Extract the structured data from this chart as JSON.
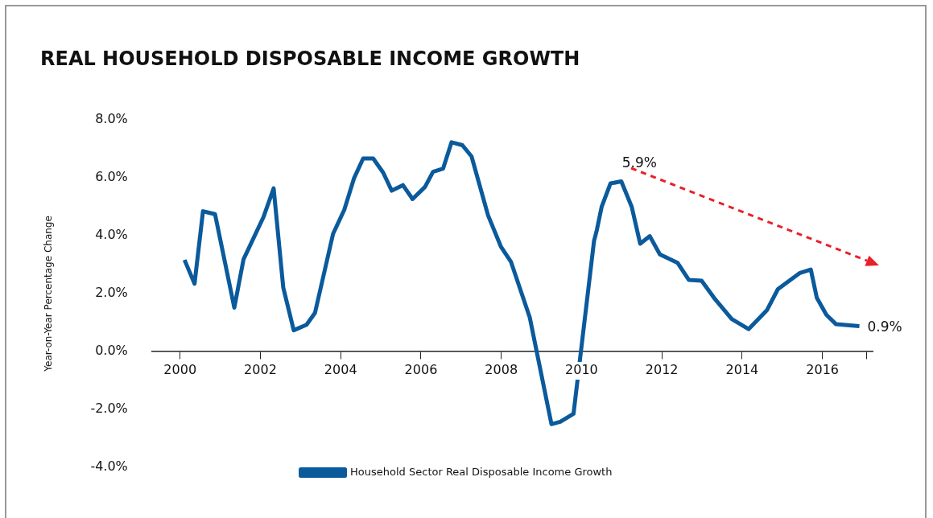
{
  "chart_data": {
    "type": "line",
    "title": "REAL HOUSEHOLD DISPOSABLE INCOME GROWTH",
    "ylabel": "Year-on-Year Percentage Change",
    "x": [
      2000.11,
      2000.36,
      2000.57,
      2000.87,
      2001.35,
      2001.58,
      2002.08,
      2002.33,
      2002.57,
      2002.83,
      2003.15,
      2003.36,
      2003.81,
      2004.09,
      2004.33,
      2004.56,
      2004.81,
      2005.06,
      2005.27,
      2005.55,
      2005.79,
      2006.1,
      2006.3,
      2006.55,
      2006.76,
      2007.03,
      2007.26,
      2007.67,
      2007.99,
      2008.24,
      2008.71,
      2009.25,
      2009.47,
      2009.8,
      2010.31,
      2010.38,
      2010.5,
      2010.72,
      2010.99,
      2011.25,
      2011.46,
      2011.7,
      2011.95,
      2012.39,
      2012.67,
      2012.99,
      2013.3,
      2013.74,
      2014.16,
      2014.62,
      2014.89,
      2015.44,
      2015.71,
      2015.86,
      2016.1,
      2016.34,
      2016.92
    ],
    "series": [
      {
        "name": "Household Sector Real Disposable Income Growth",
        "color": "#0a5a9c",
        "values": [
          3.16,
          2.34,
          4.84,
          4.74,
          1.51,
          3.18,
          4.65,
          5.63,
          2.2,
          0.73,
          0.92,
          1.33,
          4.06,
          4.89,
          5.97,
          6.66,
          6.66,
          6.17,
          5.55,
          5.74,
          5.26,
          5.68,
          6.2,
          6.31,
          7.22,
          7.12,
          6.73,
          4.7,
          3.62,
          3.1,
          1.17,
          -2.51,
          -2.43,
          -2.15,
          3.81,
          4.19,
          4.99,
          5.8,
          5.87,
          4.99,
          3.72,
          3.98,
          3.35,
          3.06,
          2.47,
          2.44,
          1.85,
          1.12,
          0.77,
          1.43,
          2.15,
          2.71,
          2.83,
          1.85,
          1.26,
          0.94,
          0.87
        ]
      }
    ],
    "xlim": [
      1999.3,
      2017.25
    ],
    "xticks": [
      2000,
      2002,
      2004,
      2006,
      2008,
      2010,
      2012,
      2014,
      2016,
      {
        "value": 2017.1,
        "label": null
      }
    ],
    "ylim": [
      -4,
      8
    ],
    "yticks": [
      {
        "value": -4,
        "label": "-4.0%"
      },
      {
        "value": -2,
        "label": "-2.0%"
      },
      {
        "value": 0,
        "label": "0.0%"
      },
      {
        "value": 2,
        "label": "2.0%"
      },
      {
        "value": 4,
        "label": "4.0%"
      },
      {
        "value": 6,
        "label": "6.0%"
      },
      {
        "value": 8,
        "label": "8.0%"
      }
    ],
    "annotations": [
      {
        "text": "5.9%",
        "x": 2011.0,
        "y": 5.9
      },
      {
        "text": "0.9%",
        "x": 2016.92,
        "y": 0.87
      }
    ],
    "grid": false,
    "legend": "bottom",
    "marker": "none",
    "line_style": "solid"
  }
}
